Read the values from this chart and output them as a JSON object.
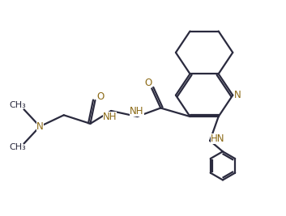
{
  "bg_color": "#ffffff",
  "bond_color": "#2a2a3e",
  "atom_color": "#8B6914",
  "line_width": 1.6,
  "font_size": 8.5,
  "fig_width": 3.53,
  "fig_height": 2.67,
  "dpi": 100,
  "xlim": [
    0,
    10
  ],
  "ylim": [
    0,
    7.5
  ]
}
